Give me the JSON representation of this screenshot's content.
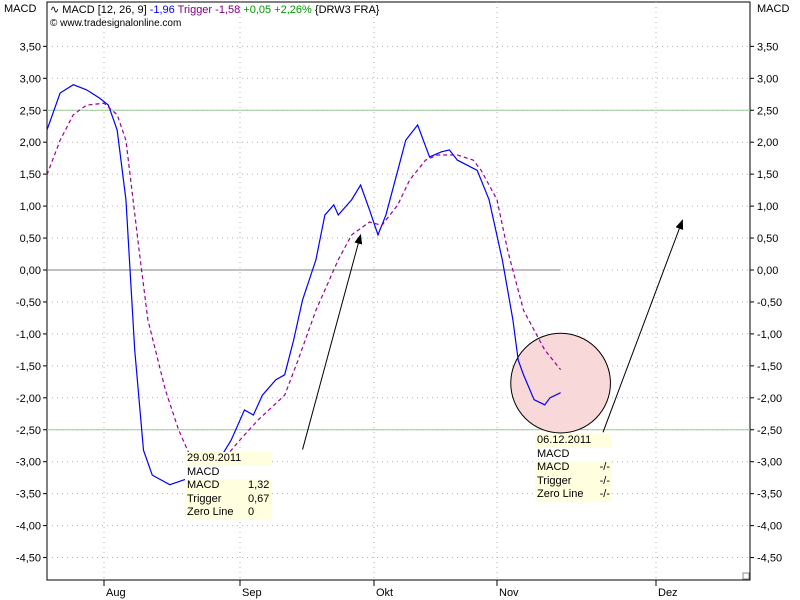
{
  "corner_label_left": "MACD",
  "corner_label_right": "MACD",
  "header": {
    "indicator": "MACD [12, 26, 9]",
    "macd_value": "-1,96",
    "trigger_label": "Trigger",
    "trigger_value": "-1,58",
    "change": "+0,05",
    "change_pct": "+2,26%",
    "symbol": "{DRW3 FRA}",
    "copyright": "© www.tradesignalonline.com",
    "icon": "wave-icon"
  },
  "colors": {
    "macd": "#0000ff",
    "trigger": "#990099",
    "change": "#009900",
    "zero_line": "#808080",
    "levels": "#99cc99",
    "highlight": "#f8d8d8"
  },
  "tooltip1": {
    "date": "29.09.2011",
    "title": "MACD",
    "rows": [
      {
        "label": "MACD",
        "value": "1,32"
      },
      {
        "label": "Trigger",
        "value": "0,67"
      },
      {
        "label": "Zero Line",
        "value": "0"
      }
    ]
  },
  "tooltip2": {
    "date": "06.12.2011",
    "title": "MACD",
    "rows": [
      {
        "label": "MACD",
        "value": "-/-"
      },
      {
        "label": "Trigger",
        "value": "-/-"
      },
      {
        "label": "Zero Line",
        "value": "-/-"
      }
    ]
  },
  "chart_data": {
    "type": "line",
    "ylim": [
      -5.0,
      4.2
    ],
    "yticks": [
      "3,50",
      "3,00",
      "2,50",
      "2,00",
      "1,50",
      "1,00",
      "0,50",
      "0,00",
      "-0,50",
      "-1,00",
      "-1,50",
      "-2,00",
      "-2,50",
      "-3,00",
      "-3,50",
      "-4,00",
      "-4,50"
    ],
    "xticks": [
      "Aug",
      "Sep",
      "Okt",
      "Nov",
      "Dez"
    ],
    "xlim": [
      "2011-07-19",
      "2011-12-15"
    ],
    "grid": true,
    "levels": [
      2.5,
      -2.5,
      0
    ],
    "series": [
      {
        "name": "MACD",
        "style": "solid",
        "points": [
          [
            "2011-07-19",
            2.19
          ],
          [
            "2011-07-22",
            2.77
          ],
          [
            "2011-07-25",
            2.9
          ],
          [
            "2011-07-28",
            2.82
          ],
          [
            "2011-07-31",
            2.69
          ],
          [
            "2011-08-02",
            2.58
          ],
          [
            "2011-08-04",
            2.19
          ],
          [
            "2011-08-06",
            1.1
          ],
          [
            "2011-08-08",
            -1.25
          ],
          [
            "2011-08-10",
            -2.82
          ],
          [
            "2011-08-12",
            -3.21
          ],
          [
            "2011-08-16",
            -3.36
          ],
          [
            "2011-08-19",
            -3.29
          ],
          [
            "2011-08-23",
            -3.2
          ],
          [
            "2011-08-27",
            -3.0
          ],
          [
            "2011-08-30",
            -2.66
          ],
          [
            "2011-09-02",
            -2.19
          ],
          [
            "2011-09-04",
            -2.27
          ],
          [
            "2011-09-06",
            -1.96
          ],
          [
            "2011-09-09",
            -1.72
          ],
          [
            "2011-09-11",
            -1.64
          ],
          [
            "2011-09-13",
            -1.1
          ],
          [
            "2011-09-15",
            -0.47
          ],
          [
            "2011-09-18",
            0.16
          ],
          [
            "2011-09-20",
            0.86
          ],
          [
            "2011-09-22",
            1.02
          ],
          [
            "2011-09-23",
            0.86
          ],
          [
            "2011-09-26",
            1.1
          ],
          [
            "2011-09-28",
            1.33
          ],
          [
            "2011-09-30",
            0.94
          ],
          [
            "2011-10-02",
            0.55
          ],
          [
            "2011-10-04",
            0.86
          ],
          [
            "2011-10-07",
            1.56
          ],
          [
            "2011-10-09",
            2.03
          ],
          [
            "2011-10-10",
            2.11
          ],
          [
            "2011-10-12",
            2.27
          ],
          [
            "2011-10-15",
            1.77
          ],
          [
            "2011-10-18",
            1.85
          ],
          [
            "2011-10-20",
            1.88
          ],
          [
            "2011-10-22",
            1.72
          ],
          [
            "2011-10-27",
            1.56
          ],
          [
            "2011-10-30",
            1.1
          ],
          [
            "2011-11-02",
            0.16
          ],
          [
            "2011-11-04",
            -0.78
          ],
          [
            "2011-11-05",
            -1.41
          ],
          [
            "2011-11-06",
            -1.64
          ],
          [
            "2011-11-08",
            -2.03
          ],
          [
            "2011-11-10",
            -2.11
          ],
          [
            "2011-11-11",
            -2.0
          ],
          [
            "2011-11-13",
            -1.92
          ]
        ]
      },
      {
        "name": "Trigger",
        "style": "dashed",
        "points": [
          [
            "2011-07-19",
            1.49
          ],
          [
            "2011-07-22",
            2.03
          ],
          [
            "2011-07-25",
            2.43
          ],
          [
            "2011-07-28",
            2.58
          ],
          [
            "2011-08-01",
            2.61
          ],
          [
            "2011-08-04",
            2.43
          ],
          [
            "2011-08-06",
            2.03
          ],
          [
            "2011-08-09",
            0.31
          ],
          [
            "2011-08-11",
            -0.78
          ],
          [
            "2011-08-15",
            -1.88
          ],
          [
            "2011-08-18",
            -2.5
          ],
          [
            "2011-08-21",
            -2.97
          ],
          [
            "2011-08-25",
            -3.1
          ],
          [
            "2011-08-29",
            -2.9
          ],
          [
            "2011-09-01",
            -2.66
          ],
          [
            "2011-09-05",
            -2.35
          ],
          [
            "2011-09-11",
            -1.96
          ],
          [
            "2011-09-14",
            -1.41
          ],
          [
            "2011-09-18",
            -0.63
          ],
          [
            "2011-09-23",
            0.16
          ],
          [
            "2011-09-26",
            0.55
          ],
          [
            "2011-09-30",
            0.75
          ],
          [
            "2011-10-03",
            0.7
          ],
          [
            "2011-10-07",
            1.02
          ],
          [
            "2011-10-10",
            1.41
          ],
          [
            "2011-10-14",
            1.72
          ],
          [
            "2011-10-17",
            1.8
          ],
          [
            "2011-10-22",
            1.8
          ],
          [
            "2011-10-26",
            1.72
          ],
          [
            "2011-10-28",
            1.56
          ],
          [
            "2011-11-01",
            1.1
          ],
          [
            "2011-11-03",
            0.31
          ],
          [
            "2011-11-06",
            -0.63
          ],
          [
            "2011-11-10",
            -1.25
          ],
          [
            "2011-11-13",
            -1.56
          ]
        ]
      }
    ],
    "annotations": [
      {
        "type": "arrow",
        "from": [
          "2011-09-15",
          -2.81
        ],
        "to": [
          "2011-09-28",
          0.55
        ]
      },
      {
        "type": "arrow",
        "from": [
          "2011-11-21",
          -2.54
        ],
        "to": [
          "2011-12-06",
          0.78
        ]
      },
      {
        "type": "circle",
        "center": [
          "2011-11-13",
          -1.77
        ],
        "radius_value": 0.78
      }
    ]
  }
}
